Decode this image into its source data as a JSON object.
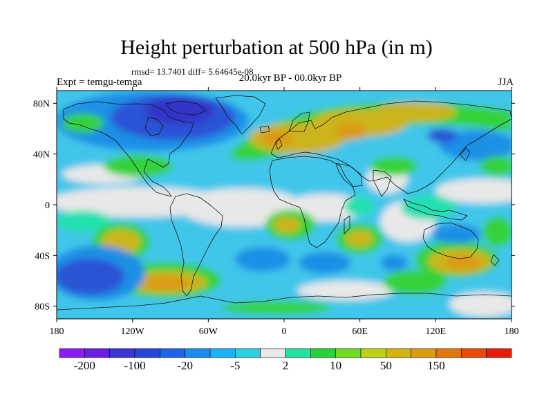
{
  "title": "Height perturbation at 500 hPa (in m)",
  "stats": "rmsd= 13.7401 diff= 5.64645e-08",
  "experiment": "Expt = temgu-temga",
  "period": "20.0kyr BP - 00.0kyr BP",
  "season": "JJA",
  "map": {
    "projection": "cylindrical-equidistant",
    "lon_range": [
      -180,
      180
    ],
    "lat_range": [
      -90,
      90
    ],
    "lon_ticks": [
      {
        "lon": -180,
        "label": "180"
      },
      {
        "lon": -120,
        "label": "120W"
      },
      {
        "lon": -60,
        "label": "60W"
      },
      {
        "lon": 0,
        "label": "0"
      },
      {
        "lon": 60,
        "label": "60E"
      },
      {
        "lon": 120,
        "label": "120E"
      },
      {
        "lon": 180,
        "label": "180"
      }
    ],
    "lat_ticks": [
      {
        "lat": 80,
        "label": "80N"
      },
      {
        "lat": 40,
        "label": "40N"
      },
      {
        "lat": 0,
        "label": "0"
      },
      {
        "lat": -40,
        "label": "40S"
      },
      {
        "lat": -80,
        "label": "80S"
      }
    ]
  },
  "colorbar": {
    "colors": [
      "#8c1cf4",
      "#6a1ee0",
      "#3c34d4",
      "#2546d8",
      "#1e64e6",
      "#1a8cee",
      "#1cb0f4",
      "#2ccfe2",
      "#e8e8e8",
      "#22e2a4",
      "#28d23c",
      "#70dc1e",
      "#bcd21a",
      "#d2b414",
      "#dc9c10",
      "#e4760c",
      "#ea4a08",
      "#e61c06"
    ],
    "labels": [
      {
        "boundary": 1,
        "text": "-200"
      },
      {
        "boundary": 3,
        "text": "-100"
      },
      {
        "boundary": 5,
        "text": "-20"
      },
      {
        "boundary": 7,
        "text": "-5"
      },
      {
        "boundary": 9,
        "text": "2"
      },
      {
        "boundary": 11,
        "text": "10"
      },
      {
        "boundary": 13,
        "text": "50"
      },
      {
        "boundary": 15,
        "text": "150"
      }
    ]
  },
  "field_colors": {
    "neutral": "#e8e8e8",
    "light_blue": "#3fc6ea",
    "blue": "#1f8fe6",
    "dark_blue": "#2a52d6",
    "navy": "#3236c8",
    "teal": "#22e0b0",
    "green": "#34d23a",
    "lime": "#a8d21c",
    "olive": "#ccb41a",
    "orange": "#dc9a12"
  }
}
